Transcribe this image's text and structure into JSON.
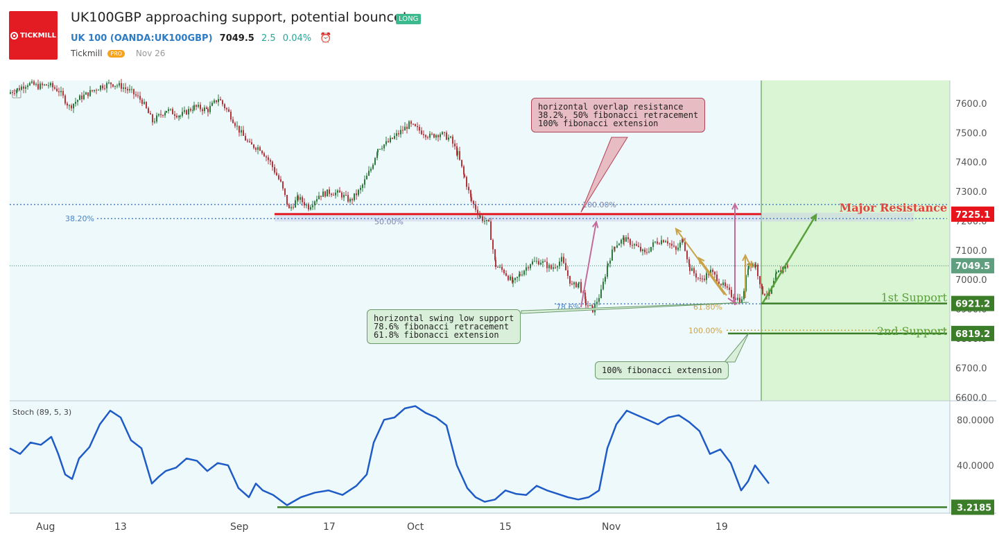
{
  "header": {
    "title": "UK100GBP approaching support, potential bounce!",
    "badge": "LONG",
    "symbol": "UK 100 (OANDA:UK100GBP)",
    "last_price": "7049.5",
    "change": "2.5",
    "change_pct": "0.04%",
    "alarm_icon": "alarm-clock-icon",
    "author": "Tickmill",
    "author_badge": "PRO",
    "date": "Nov 26",
    "logo_text": "TICKMILL"
  },
  "colors": {
    "up": "#2b7a3b",
    "down": "#b3343b",
    "stoch_line": "#1e5bc6",
    "resistance": "#e31b23",
    "support": "#3c7d2a",
    "fib_blue": "#4a82c8",
    "fib_gold": "#c9a24a",
    "projection": "#5aa03a",
    "pink_arrow": "#c46a9a"
  },
  "annotations": {
    "resistance_note": [
      "horizontal overlap resistance",
      "38.2%, 50% fibonacci retracement",
      "100% fibonacci extension"
    ],
    "support1_note": [
      "horizontal swing low support",
      "78.6% fibonacci retracement",
      "61.8% fibonacci extension"
    ],
    "support2_note": [
      "100% fibonacci extension"
    ],
    "major_resistance_label": "Major Resistance",
    "support1_label": "1st Support",
    "support2_label": "2nd Support",
    "fib_labels": {
      "r38": "38.20%",
      "r50": "50.00%",
      "r100": "100.00%",
      "s786": "78.6%",
      "s618": "61.80%",
      "s1000": "100.00%"
    }
  },
  "chart_data": [
    {
      "type": "candlestick",
      "symbol": "UK100GBP",
      "y_ticks": [
        "7600.0",
        "7500.0",
        "7400.0",
        "7300.0",
        "7200.0",
        "7100.0",
        "7000.0",
        "6900.0",
        "6800.0",
        "6700.0",
        "6600.0"
      ],
      "x_ticks": [
        "Aug",
        "13",
        "Sep",
        "17",
        "Oct",
        "15",
        "Nov",
        "19"
      ],
      "ylim": [
        6590,
        7680
      ],
      "price_labels": {
        "resistance": "7225.1",
        "current": "7049.5",
        "support1": "6921.2",
        "support2": "6819.2"
      },
      "levels": {
        "resistance": 7225.1,
        "current": 7049.5,
        "support1": 6921.2,
        "support2": 6819.2,
        "fib_100_upper": 7258
      },
      "close_path": [
        [
          0,
          7640
        ],
        [
          10,
          7650
        ],
        [
          25,
          7670
        ],
        [
          40,
          7660
        ],
        [
          55,
          7665
        ],
        [
          70,
          7645
        ],
        [
          85,
          7590
        ],
        [
          100,
          7620
        ],
        [
          115,
          7640
        ],
        [
          130,
          7660
        ],
        [
          145,
          7670
        ],
        [
          160,
          7660
        ],
        [
          175,
          7640
        ],
        [
          190,
          7610
        ],
        [
          205,
          7540
        ],
        [
          225,
          7580
        ],
        [
          245,
          7560
        ],
        [
          265,
          7590
        ],
        [
          285,
          7580
        ],
        [
          300,
          7620
        ],
        [
          315,
          7570
        ],
        [
          330,
          7510
        ],
        [
          345,
          7460
        ],
        [
          360,
          7450
        ],
        [
          375,
          7400
        ],
        [
          390,
          7330
        ],
        [
          402,
          7240
        ],
        [
          415,
          7280
        ],
        [
          430,
          7250
        ],
        [
          445,
          7290
        ],
        [
          460,
          7300
        ],
        [
          475,
          7295
        ],
        [
          490,
          7270
        ],
        [
          505,
          7310
        ],
        [
          520,
          7380
        ],
        [
          530,
          7450
        ],
        [
          545,
          7470
        ],
        [
          560,
          7500
        ],
        [
          575,
          7530
        ],
        [
          590,
          7510
        ],
        [
          605,
          7490
        ],
        [
          620,
          7500
        ],
        [
          635,
          7480
        ],
        [
          645,
          7430
        ],
        [
          655,
          7350
        ],
        [
          665,
          7270
        ],
        [
          678,
          7215
        ],
        [
          690,
          7190
        ],
        [
          700,
          7050
        ],
        [
          712,
          7030
        ],
        [
          725,
          6990
        ],
        [
          735,
          7020
        ],
        [
          750,
          7060
        ],
        [
          765,
          7065
        ],
        [
          780,
          7040
        ],
        [
          795,
          7070
        ],
        [
          810,
          6980
        ],
        [
          820,
          6990
        ],
        [
          830,
          6920
        ],
        [
          840,
          6900
        ],
        [
          852,
          6960
        ],
        [
          862,
          7060
        ],
        [
          872,
          7120
        ],
        [
          885,
          7140
        ],
        [
          900,
          7120
        ],
        [
          915,
          7090
        ],
        [
          930,
          7130
        ],
        [
          945,
          7140
        ],
        [
          960,
          7100
        ],
        [
          970,
          7140
        ],
        [
          980,
          7040
        ],
        [
          995,
          7000
        ],
        [
          1010,
          7030
        ],
        [
          1025,
          6990
        ],
        [
          1040,
          6950
        ],
        [
          1055,
          6930
        ],
        [
          1065,
          7060
        ],
        [
          1075,
          7050
        ],
        [
          1085,
          6960
        ],
        [
          1095,
          6950
        ],
        [
          1105,
          7020
        ],
        [
          1115,
          7045
        ],
        [
          1122,
          7049
        ]
      ]
    },
    {
      "type": "line",
      "name": "Stoch (89, 5, 3)",
      "y_ticks": [
        "80.0000",
        "40.0000"
      ],
      "ylim": [
        -2,
        96
      ],
      "label": "3.2185",
      "level": 3.2185,
      "x": [
        0,
        15,
        30,
        45,
        60,
        70,
        80,
        90,
        100,
        115,
        130,
        145,
        160,
        175,
        190,
        205,
        215,
        225,
        240,
        255,
        270,
        285,
        300,
        315,
        330,
        345,
        355,
        365,
        380,
        400,
        420,
        440,
        460,
        480,
        500,
        515,
        525,
        540,
        555,
        570,
        585,
        600,
        615,
        630,
        645,
        660,
        672,
        685,
        700,
        715,
        730,
        745,
        760,
        775,
        790,
        805,
        820,
        835,
        850,
        862,
        875,
        890,
        905,
        920,
        935,
        950,
        965,
        980,
        995,
        1010,
        1025,
        1040,
        1055,
        1065,
        1075,
        1085,
        1095
      ],
      "y": [
        55,
        50,
        60,
        58,
        65,
        50,
        32,
        28,
        46,
        56,
        76,
        88,
        82,
        62,
        55,
        24,
        30,
        35,
        38,
        46,
        44,
        35,
        42,
        40,
        20,
        12,
        24,
        18,
        14,
        5,
        12,
        16,
        18,
        14,
        22,
        32,
        60,
        80,
        82,
        90,
        92,
        86,
        82,
        75,
        40,
        20,
        12,
        8,
        10,
        18,
        15,
        14,
        22,
        18,
        15,
        12,
        10,
        12,
        18,
        55,
        76,
        88,
        84,
        80,
        76,
        82,
        84,
        78,
        70,
        50,
        54,
        42,
        18,
        26,
        40,
        32,
        24
      ]
    }
  ]
}
